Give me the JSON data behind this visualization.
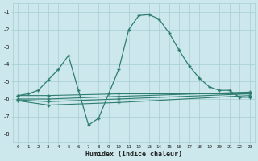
{
  "title": "",
  "xlabel": "Humidex (Indice chaleur)",
  "ylabel": "",
  "background_color": "#cce8ec",
  "grid_color": "#a8cdd4",
  "line_color": "#2e7d6e",
  "xlim": [
    -0.5,
    23.5
  ],
  "ylim": [
    -8.5,
    -0.5
  ],
  "xticks": [
    0,
    1,
    2,
    3,
    4,
    5,
    6,
    7,
    8,
    9,
    10,
    11,
    12,
    13,
    14,
    15,
    16,
    17,
    18,
    19,
    20,
    21,
    22,
    23
  ],
  "yticks": [
    -1,
    -2,
    -3,
    -4,
    -5,
    -6,
    -7,
    -8
  ],
  "curve_x": [
    0,
    1,
    2,
    3,
    4,
    5,
    6,
    7,
    8,
    9,
    10,
    11,
    12,
    13,
    14,
    15,
    16,
    17,
    18,
    19,
    20,
    21,
    22,
    23
  ],
  "curve_y": [
    -5.8,
    -5.7,
    -5.5,
    -4.9,
    -4.3,
    -3.5,
    -5.5,
    -7.5,
    -7.1,
    -5.7,
    -4.3,
    -2.0,
    -1.2,
    -1.15,
    -1.4,
    -2.2,
    -3.2,
    -4.1,
    -4.8,
    -5.3,
    -5.5,
    -5.5,
    -5.9,
    -5.9
  ],
  "line1_x": [
    0,
    3,
    10,
    23
  ],
  "line1_y": [
    -5.8,
    -5.8,
    -5.7,
    -5.7
  ],
  "line2_x": [
    0,
    3,
    10,
    23
  ],
  "line2_y": [
    -6.0,
    -6.0,
    -5.85,
    -5.6
  ],
  "line3_x": [
    0,
    3,
    10,
    23
  ],
  "line3_y": [
    -6.05,
    -6.15,
    -6.0,
    -5.7
  ],
  "line4_x": [
    0,
    3,
    10,
    23
  ],
  "line4_y": [
    -6.1,
    -6.35,
    -6.2,
    -5.8
  ]
}
